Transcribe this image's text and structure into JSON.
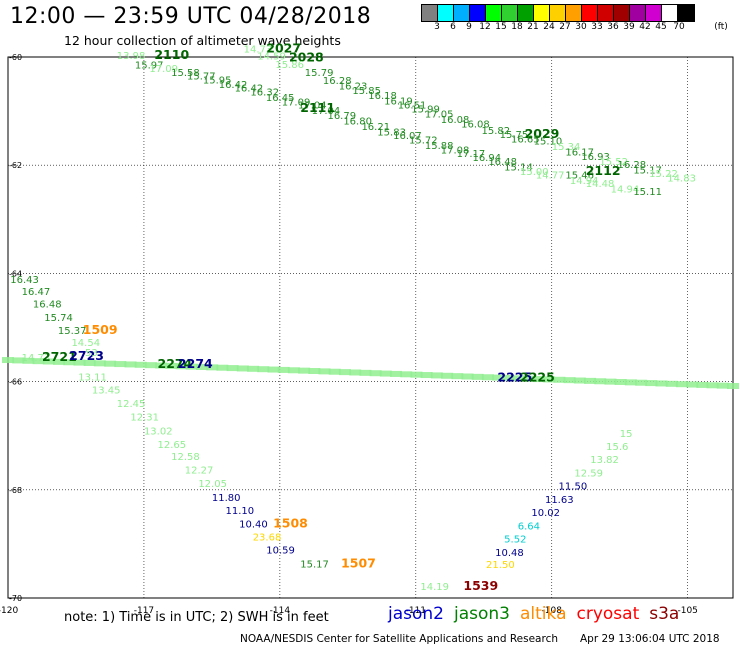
{
  "header": {
    "title": "12:00 — 23:59 UTC 04/28/2018",
    "subtitle": "12 hour collection of altimeter wave heights"
  },
  "colorbar": {
    "unit": "(ft)",
    "swatches": [
      "#808080",
      "#00ffff",
      "#00b0ff",
      "#0000ff",
      "#00ff00",
      "#30d030",
      "#00a000",
      "#ffff00",
      "#ffd000",
      "#ffa000",
      "#ff0000",
      "#d00000",
      "#a00000",
      "#a000a0",
      "#d000d0",
      "#ffffff",
      "#000000"
    ],
    "ticks": [
      "3",
      "6",
      "9",
      "12",
      "15",
      "18",
      "21",
      "24",
      "27",
      "30",
      "33",
      "36",
      "39",
      "42",
      "45",
      "70"
    ]
  },
  "chart_data": {
    "type": "map",
    "lon_range": [
      -120,
      -104
    ],
    "lat_range": [
      -70,
      -60
    ],
    "grid": true,
    "lon_ticks": [
      {
        "value": -120,
        "label": "-120"
      },
      {
        "value": -117,
        "label": "-117"
      },
      {
        "value": -114,
        "label": "-114"
      },
      {
        "value": -111,
        "label": "-111"
      },
      {
        "value": -108,
        "label": "-108"
      },
      {
        "value": -105,
        "label": "-105"
      }
    ],
    "lat_ticks": [
      {
        "value": -60,
        "label": "-60"
      },
      {
        "value": -62,
        "label": "-62"
      },
      {
        "value": -64,
        "label": "-64"
      },
      {
        "value": -66,
        "label": "-66"
      },
      {
        "value": -68,
        "label": "-68"
      },
      {
        "value": -70,
        "label": "-70"
      }
    ],
    "observations": [
      {
        "lon": -117.6,
        "lat": -60.04,
        "text": "13.98",
        "color": "#90ee90"
      },
      {
        "lon": -116.77,
        "lat": -60.04,
        "text": "2110",
        "color": "#006400",
        "bold": true
      },
      {
        "lon": -117.2,
        "lat": -60.21,
        "text": "15.97",
        "color": "#228b22"
      },
      {
        "lon": -116.88,
        "lat": -60.28,
        "text": "17.09",
        "color": "#90ee90"
      },
      {
        "lon": -116.4,
        "lat": -60.35,
        "text": "15.58",
        "color": "#228b22"
      },
      {
        "lon": -116.05,
        "lat": -60.42,
        "text": "15.77",
        "color": "#228b22"
      },
      {
        "lon": -115.7,
        "lat": -60.49,
        "text": "15.95",
        "color": "#228b22"
      },
      {
        "lon": -115.35,
        "lat": -60.57,
        "text": "16.42",
        "color": "#228b22"
      },
      {
        "lon": -115.0,
        "lat": -60.64,
        "text": "16.42",
        "color": "#228b22"
      },
      {
        "lon": -114.65,
        "lat": -60.71,
        "text": "16.32",
        "color": "#228b22"
      },
      {
        "lon": -114.31,
        "lat": -60.81,
        "text": "16.45",
        "color": "#228b22"
      },
      {
        "lon": -113.96,
        "lat": -60.9,
        "text": "17.09",
        "color": "#228b22"
      },
      {
        "lon": -113.6,
        "lat": -60.95,
        "text": "17.04",
        "color": "#228b22"
      },
      {
        "lon": -113.3,
        "lat": -61.05,
        "text": "17.04",
        "color": "#228b22"
      },
      {
        "lon": -112.95,
        "lat": -61.15,
        "text": "16.79",
        "color": "#228b22"
      },
      {
        "lon": -112.6,
        "lat": -61.25,
        "text": "16.80",
        "color": "#228b22"
      },
      {
        "lon": -112.2,
        "lat": -61.35,
        "text": "16.21",
        "color": "#228b22"
      },
      {
        "lon": -111.85,
        "lat": -61.45,
        "text": "15.83",
        "color": "#228b22"
      },
      {
        "lon": -111.5,
        "lat": -61.52,
        "text": "16.07",
        "color": "#228b22"
      },
      {
        "lon": -111.15,
        "lat": -61.6,
        "text": "15.72",
        "color": "#228b22"
      },
      {
        "lon": -110.8,
        "lat": -61.7,
        "text": "15.88",
        "color": "#228b22"
      },
      {
        "lon": -110.45,
        "lat": -61.78,
        "text": "17.08",
        "color": "#228b22"
      },
      {
        "lon": -110.1,
        "lat": -61.85,
        "text": "17.17",
        "color": "#228b22"
      },
      {
        "lon": -109.75,
        "lat": -61.92,
        "text": "16.94",
        "color": "#228b22"
      },
      {
        "lon": -109.4,
        "lat": -62.0,
        "text": "16.48",
        "color": "#228b22"
      },
      {
        "lon": -109.05,
        "lat": -62.1,
        "text": "15.14",
        "color": "#228b22"
      },
      {
        "lon": -108.7,
        "lat": -62.18,
        "text": "15.00",
        "color": "#90ee90"
      },
      {
        "lon": -108.35,
        "lat": -62.25,
        "text": "14.77",
        "color": "#90ee90"
      },
      {
        "lon": -107.7,
        "lat": -62.25,
        "text": "15.46",
        "color": "#228b22"
      },
      {
        "lon": -107.25,
        "lat": -62.18,
        "text": "2112",
        "color": "#006400",
        "bold": true
      },
      {
        "lon": -107.6,
        "lat": -62.35,
        "text": "14.94",
        "color": "#90ee90"
      },
      {
        "lon": -107.25,
        "lat": -62.4,
        "text": "14.48",
        "color": "#90ee90"
      },
      {
        "lon": -106.7,
        "lat": -62.5,
        "text": "14.94",
        "color": "#90ee90"
      },
      {
        "lon": -106.2,
        "lat": -62.55,
        "text": "15.11",
        "color": "#228b22"
      },
      {
        "lon": -114.8,
        "lat": -59.92,
        "text": "14.73",
        "color": "#90ee90"
      },
      {
        "lon": -114.3,
        "lat": -59.92,
        "text": "2027",
        "color": "#006400",
        "bold": true
      },
      {
        "lon": -114.5,
        "lat": -60.05,
        "text": "14.59",
        "color": "#90ee90"
      },
      {
        "lon": -113.8,
        "lat": -60.08,
        "text": "2028",
        "color": "#006400",
        "bold": true
      },
      {
        "lon": -114.1,
        "lat": -60.2,
        "text": "15.86",
        "color": "#90ee90"
      },
      {
        "lon": -113.45,
        "lat": -60.35,
        "text": "15.79",
        "color": "#228b22"
      },
      {
        "lon": -113.05,
        "lat": -60.5,
        "text": "16.28",
        "color": "#228b22"
      },
      {
        "lon": -112.7,
        "lat": -60.6,
        "text": "16.23",
        "color": "#228b22"
      },
      {
        "lon": -112.4,
        "lat": -60.68,
        "text": "15.85",
        "color": "#228b22"
      },
      {
        "lon": -112.05,
        "lat": -60.78,
        "text": "16.18",
        "color": "#228b22"
      },
      {
        "lon": -111.7,
        "lat": -60.88,
        "text": "16.19",
        "color": "#228b22"
      },
      {
        "lon": -111.4,
        "lat": -60.95,
        "text": "16.51",
        "color": "#228b22"
      },
      {
        "lon": -111.1,
        "lat": -61.03,
        "text": "15.99",
        "color": "#228b22"
      },
      {
        "lon": -110.8,
        "lat": -61.12,
        "text": "17.05",
        "color": "#228b22"
      },
      {
        "lon": -110.45,
        "lat": -61.22,
        "text": "16.08",
        "color": "#228b22"
      },
      {
        "lon": -110.0,
        "lat": -61.3,
        "text": "16.08",
        "color": "#228b22"
      },
      {
        "lon": -109.55,
        "lat": -61.42,
        "text": "15.82",
        "color": "#228b22"
      },
      {
        "lon": -109.15,
        "lat": -61.5,
        "text": "15.75",
        "color": "#228b22"
      },
      {
        "lon": -108.6,
        "lat": -61.5,
        "text": "2029",
        "color": "#006400",
        "bold": true
      },
      {
        "lon": -108.9,
        "lat": -61.58,
        "text": "16.65",
        "color": "#228b22"
      },
      {
        "lon": -108.4,
        "lat": -61.62,
        "text": "15.10",
        "color": "#228b22"
      },
      {
        "lon": -108.0,
        "lat": -61.72,
        "text": "15.34",
        "color": "#90ee90"
      },
      {
        "lon": -107.7,
        "lat": -61.82,
        "text": "16.17",
        "color": "#228b22"
      },
      {
        "lon": -107.35,
        "lat": -61.9,
        "text": "16.93",
        "color": "#228b22"
      },
      {
        "lon": -106.95,
        "lat": -62.0,
        "text": "15.52",
        "color": "#90ee90"
      },
      {
        "lon": -106.55,
        "lat": -62.05,
        "text": "16.28",
        "color": "#228b22"
      },
      {
        "lon": -106.2,
        "lat": -62.15,
        "text": "15.17",
        "color": "#228b22"
      },
      {
        "lon": -105.85,
        "lat": -62.22,
        "text": "15.22",
        "color": "#90ee90"
      },
      {
        "lon": -105.45,
        "lat": -62.3,
        "text": "14.83",
        "color": "#90ee90"
      },
      {
        "lon": -113.55,
        "lat": -61.02,
        "text": "2111",
        "color": "#006400",
        "bold": true
      },
      {
        "lon": -119.95,
        "lat": -64.18,
        "text": "16.43",
        "color": "#228b22"
      },
      {
        "lon": -119.7,
        "lat": -64.4,
        "text": "16.47",
        "color": "#228b22"
      },
      {
        "lon": -119.45,
        "lat": -64.63,
        "text": "16.48",
        "color": "#228b22"
      },
      {
        "lon": -119.2,
        "lat": -64.88,
        "text": "15.74",
        "color": "#228b22"
      },
      {
        "lon": -118.9,
        "lat": -65.12,
        "text": "15.37",
        "color": "#228b22"
      },
      {
        "lon": -118.35,
        "lat": -65.12,
        "text": "1509",
        "color": "#ff8c00",
        "bold": true
      },
      {
        "lon": -118.6,
        "lat": -65.34,
        "text": "14.54",
        "color": "#90ee90"
      },
      {
        "lon": -119.7,
        "lat": -65.62,
        "text": "14.73",
        "color": "#90ee90"
      },
      {
        "lon": -119.25,
        "lat": -65.62,
        "text": "2721",
        "color": "#006400",
        "bold": true
      },
      {
        "lon": -118.65,
        "lat": -65.6,
        "text": "2723",
        "color": "#00008b",
        "bold": true
      },
      {
        "lon": -118.3,
        "lat": -65.53,
        "text": "53",
        "color": "#90ee90"
      },
      {
        "lon": -118.45,
        "lat": -65.98,
        "text": "13.11",
        "color": "#90ee90"
      },
      {
        "lon": -118.15,
        "lat": -66.22,
        "text": "13.45",
        "color": "#90ee90"
      },
      {
        "lon": -117.6,
        "lat": -66.47,
        "text": "12.45",
        "color": "#90ee90"
      },
      {
        "lon": -117.3,
        "lat": -66.72,
        "text": "12.31",
        "color": "#90ee90"
      },
      {
        "lon": -117.0,
        "lat": -66.98,
        "text": "13.02",
        "color": "#90ee90"
      },
      {
        "lon": -116.7,
        "lat": -67.23,
        "text": "12.65",
        "color": "#90ee90"
      },
      {
        "lon": -116.4,
        "lat": -67.45,
        "text": "12.58",
        "color": "#90ee90"
      },
      {
        "lon": -116.1,
        "lat": -67.7,
        "text": "12.27",
        "color": "#90ee90"
      },
      {
        "lon": -115.8,
        "lat": -67.95,
        "text": "12.05",
        "color": "#90ee90"
      },
      {
        "lon": -115.5,
        "lat": -68.21,
        "text": "11.80",
        "color": "#00008b"
      },
      {
        "lon": -115.2,
        "lat": -68.45,
        "text": "11.10",
        "color": "#00008b"
      },
      {
        "lon": -114.9,
        "lat": -68.7,
        "text": "10.40",
        "color": "#00008b"
      },
      {
        "lon": -114.15,
        "lat": -68.7,
        "text": "1508",
        "color": "#ff8c00",
        "bold": true
      },
      {
        "lon": -114.6,
        "lat": -68.94,
        "text": "23.68",
        "color": "#ffd700"
      },
      {
        "lon": -114.3,
        "lat": -69.18,
        "text": "10.59",
        "color": "#00008b"
      },
      {
        "lon": -113.55,
        "lat": -69.44,
        "text": "15.17",
        "color": "#228b22"
      },
      {
        "lon": -112.65,
        "lat": -69.44,
        "text": "1507",
        "color": "#ff8c00",
        "bold": true
      },
      {
        "lon": -116.7,
        "lat": -65.75,
        "text": "2274",
        "color": "#006400",
        "bold": true
      },
      {
        "lon": -116.25,
        "lat": -65.75,
        "text": "2274",
        "color": "#00008b",
        "bold": true
      },
      {
        "lon": -109.2,
        "lat": -66.0,
        "text": "2225",
        "color": "#00008b",
        "bold": true
      },
      {
        "lon": -108.7,
        "lat": -66.0,
        "text": "2225",
        "color": "#006400",
        "bold": true
      },
      {
        "lon": -110.9,
        "lat": -69.85,
        "text": "14.19",
        "color": "#90ee90"
      },
      {
        "lon": -109.95,
        "lat": -69.85,
        "text": "1539",
        "color": "#8b0000",
        "bold": true
      },
      {
        "lon": -109.45,
        "lat": -69.45,
        "text": "21.50",
        "color": "#ffd700"
      },
      {
        "lon": -109.25,
        "lat": -69.22,
        "text": "10.48",
        "color": "#00008b"
      },
      {
        "lon": -109.05,
        "lat": -68.97,
        "text": "5.52",
        "color": "#00ced1"
      },
      {
        "lon": -108.75,
        "lat": -68.73,
        "text": "6.64",
        "color": "#00ced1"
      },
      {
        "lon": -108.45,
        "lat": -68.48,
        "text": "10.02",
        "color": "#00008b"
      },
      {
        "lon": -108.15,
        "lat": -68.24,
        "text": "11.63",
        "color": "#00008b"
      },
      {
        "lon": -107.85,
        "lat": -67.99,
        "text": "11.50",
        "color": "#00008b"
      },
      {
        "lon": -107.5,
        "lat": -67.75,
        "text": "12.59",
        "color": "#90ee90"
      },
      {
        "lon": -107.15,
        "lat": -67.5,
        "text": "13.82",
        "color": "#90ee90"
      },
      {
        "lon": -106.8,
        "lat": -67.26,
        "text": "15.6",
        "color": "#90ee90"
      },
      {
        "lon": -106.5,
        "lat": -67.02,
        "text": "15",
        "color": "#90ee90"
      }
    ],
    "band_track": {
      "start": [
        -120,
        -65.62
      ],
      "end": [
        -104,
        -66.1
      ],
      "color": "#90ee90",
      "count": 72
    }
  },
  "footer": {
    "note": "note:  1) Time is in UTC;  2) SWH is in feet",
    "legend": [
      {
        "label": "jason2",
        "color": "#0000cd"
      },
      {
        "label": "jason3",
        "color": "#008000"
      },
      {
        "label": "altika",
        "color": "#ff8c00"
      },
      {
        "label": "cryosat",
        "color": "#ff0000"
      },
      {
        "label": "s3a",
        "color": "#8b0000"
      }
    ],
    "credit": "NOAA/NESDIS Center for Satellite Applications and Research",
    "timestamp": "Apr 29 13:06:04 UTC 2018"
  }
}
